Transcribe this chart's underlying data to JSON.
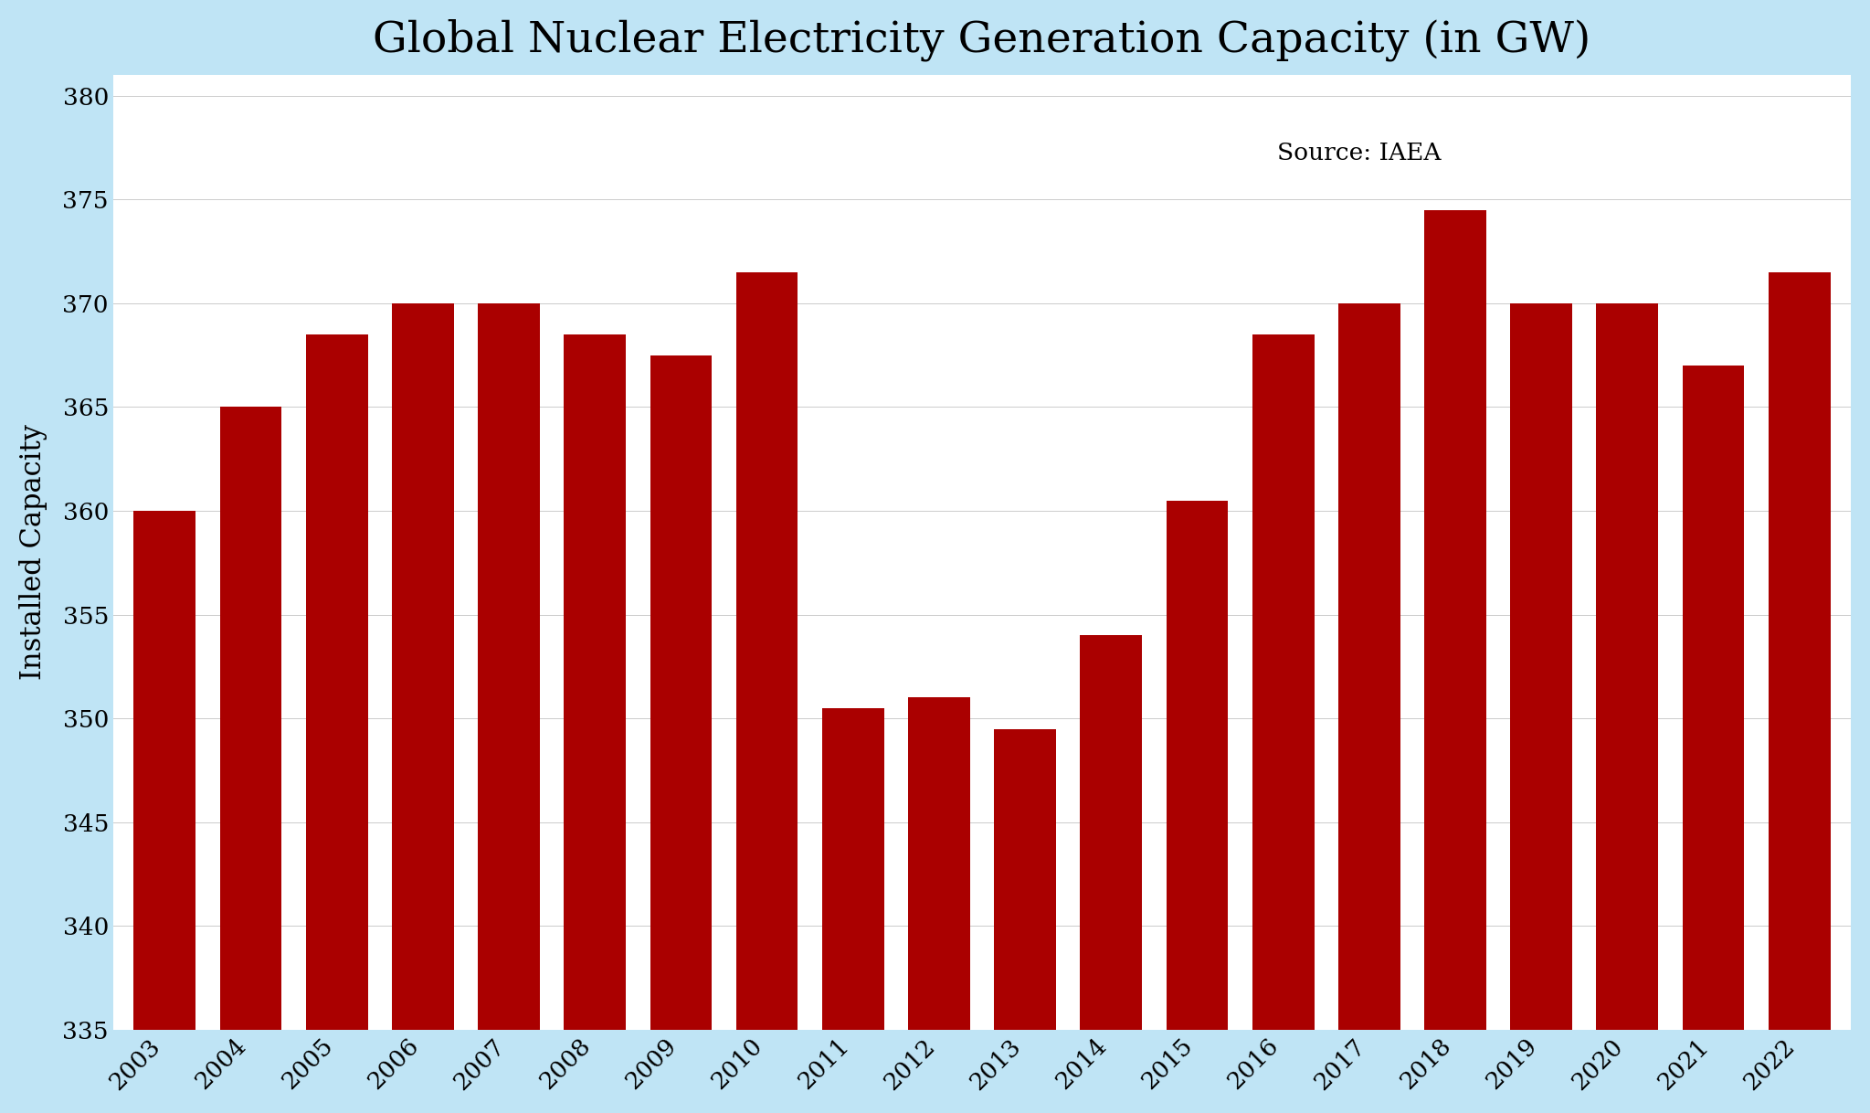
{
  "title": "Global Nuclear Electricity Generation Capacity (in GW)",
  "ylabel": "Installed Capacity",
  "source_text": "Source: IAEA",
  "background_color": "#BFE4F5",
  "plot_bg_color": "#FFFFFF",
  "bar_color": "#AA0000",
  "years": [
    2003,
    2004,
    2005,
    2006,
    2007,
    2008,
    2009,
    2010,
    2011,
    2012,
    2013,
    2014,
    2015,
    2016,
    2017,
    2018,
    2019,
    2020,
    2021,
    2022
  ],
  "values": [
    360,
    365,
    368.5,
    370,
    370,
    368.5,
    367.5,
    371.5,
    350.5,
    351,
    349.5,
    354,
    360.5,
    368.5,
    370,
    374.5,
    370,
    370,
    367,
    371.5
  ],
  "ylim": [
    335,
    381
  ],
  "yticks": [
    335,
    340,
    345,
    350,
    355,
    360,
    365,
    370,
    375,
    380
  ],
  "title_fontsize": 34,
  "label_fontsize": 22,
  "tick_fontsize": 19,
  "source_fontsize": 19
}
